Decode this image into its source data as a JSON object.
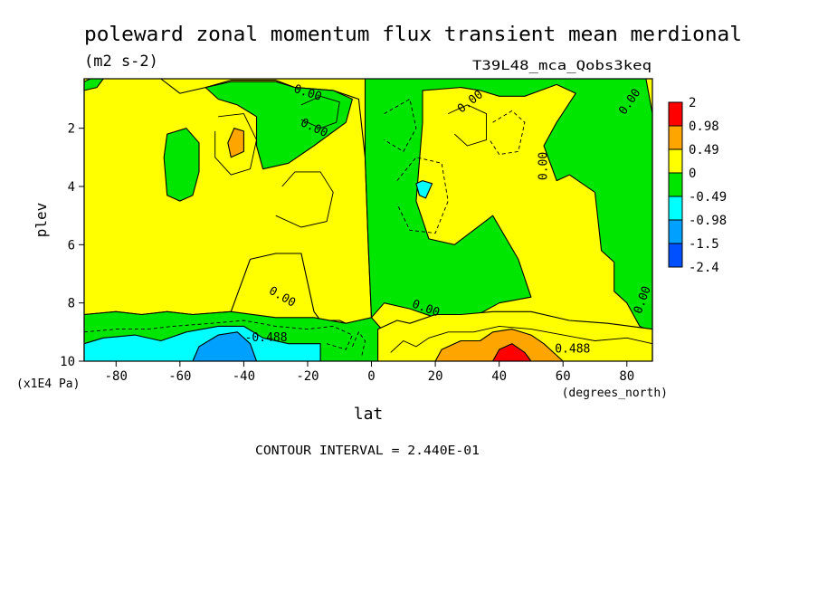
{
  "chart_data": {
    "type": "heatmap",
    "title": "poleward zonal momentum flux transient mean merdional",
    "units": "(m2 s-2)",
    "dataset": "T39L48_mca_Qobs3keq",
    "xlabel": "lat",
    "x_units": "(degrees_north)",
    "ylabel": "plev",
    "y_units": "(x1E4 Pa)",
    "xlim": [
      -90,
      88
    ],
    "ylim": [
      10,
      0.3
    ],
    "x_ticks": [
      {
        "v": -80,
        "label": "-80"
      },
      {
        "v": -60,
        "label": "-60"
      },
      {
        "v": -40,
        "label": "-40"
      },
      {
        "v": -20,
        "label": "-20"
      },
      {
        "v": 0,
        "label": "0"
      },
      {
        "v": 20,
        "label": "20"
      },
      {
        "v": 40,
        "label": "40"
      },
      {
        "v": 60,
        "label": "60"
      },
      {
        "v": 80,
        "label": "80"
      }
    ],
    "y_ticks": [
      {
        "v": 2,
        "label": "2"
      },
      {
        "v": 4,
        "label": "4"
      },
      {
        "v": 6,
        "label": "6"
      },
      {
        "v": 8,
        "label": "8"
      },
      {
        "v": 10,
        "label": "10"
      }
    ],
    "contour_interval_text": "CONTOUR INTERVAL = 2.440E-01",
    "colorbar": {
      "levels": [
        {
          "label": "2",
          "color": "#ff0000"
        },
        {
          "label": "0.98",
          "color": "#ffa500"
        },
        {
          "label": "0.49",
          "color": "#ffff00"
        },
        {
          "label": "0",
          "color": "#00e600"
        },
        {
          "label": "-0.49",
          "color": "#00ffff"
        },
        {
          "label": "-0.98",
          "color": "#00a0ff"
        },
        {
          "label": "-1.5",
          "color": "#0050ff"
        },
        {
          "label": "-2.4",
          "color": ""
        }
      ]
    },
    "contour_labels": [
      {
        "text": "0.00",
        "lat": -20,
        "p": 0.8,
        "angle": 18
      },
      {
        "text": "0.00",
        "lat": -18,
        "p": 2.0,
        "angle": 25
      },
      {
        "text": "0.00",
        "lat": 31,
        "p": 1.1,
        "angle": -38
      },
      {
        "text": "0.00",
        "lat": 81,
        "p": 1.1,
        "angle": -55
      },
      {
        "text": "0.00",
        "lat": 54,
        "p": 3.3,
        "angle": -90
      },
      {
        "text": "0.00",
        "lat": -28,
        "p": 7.8,
        "angle": 30
      },
      {
        "text": "0.00",
        "lat": 17,
        "p": 8.2,
        "angle": 20
      },
      {
        "text": "0.00",
        "lat": 85,
        "p": 7.9,
        "angle": -70
      },
      {
        "text": "-0.488",
        "lat": -33,
        "p": 9.2,
        "angle": 0
      },
      {
        "text": "0.488",
        "lat": 63,
        "p": 9.6,
        "angle": 0
      }
    ],
    "regions": [
      {
        "level": "0.49",
        "points": [
          [
            -90,
            0.3
          ],
          [
            -66,
            0.3
          ],
          [
            -60,
            0.8
          ],
          [
            -52,
            0.6
          ],
          [
            -44,
            0.35
          ],
          [
            -30,
            0.35
          ],
          [
            -24,
            0.6
          ],
          [
            -12,
            0.7
          ],
          [
            -4,
            1.0
          ],
          [
            -2,
            3.0
          ],
          [
            -1,
            6.0
          ],
          [
            0,
            8.5
          ],
          [
            -6,
            8.8
          ],
          [
            -10,
            8.6
          ],
          [
            -16,
            8.6
          ],
          [
            -18,
            8.3
          ],
          [
            -22,
            6.3
          ],
          [
            -30,
            6.3
          ],
          [
            -38,
            6.5
          ],
          [
            -44,
            8.3
          ],
          [
            -56,
            8.4
          ],
          [
            -64,
            8.3
          ],
          [
            -72,
            8.4
          ],
          [
            -80,
            8.3
          ],
          [
            -90,
            8.4
          ]
        ]
      },
      {
        "level": "0",
        "points": [
          [
            -52,
            0.6
          ],
          [
            -44,
            0.4
          ],
          [
            -30,
            0.4
          ],
          [
            -24,
            0.6
          ],
          [
            -12,
            0.7
          ],
          [
            -6,
            1.0
          ],
          [
            -8,
            1.8
          ],
          [
            -18,
            2.6
          ],
          [
            -26,
            3.2
          ],
          [
            -34,
            3.4
          ],
          [
            -36,
            2.6
          ],
          [
            -36,
            1.6
          ],
          [
            -42,
            1.2
          ],
          [
            -48,
            1.0
          ]
        ]
      },
      {
        "level": "0",
        "points": [
          [
            -90,
            0.4
          ],
          [
            -88,
            0.3
          ],
          [
            -84,
            0.3
          ],
          [
            -86,
            0.6
          ],
          [
            -90,
            0.7
          ]
        ]
      },
      {
        "level": "0",
        "points": [
          [
            -64,
            2.2
          ],
          [
            -58,
            2.0
          ],
          [
            -54,
            2.5
          ],
          [
            -54,
            3.5
          ],
          [
            -56,
            4.3
          ],
          [
            -60,
            4.5
          ],
          [
            -64,
            4.3
          ],
          [
            -65,
            3.0
          ]
        ]
      },
      {
        "level": "0",
        "points": [
          [
            -2,
            0.3
          ],
          [
            86,
            0.3
          ],
          [
            88,
            1.5
          ],
          [
            88,
            9.0
          ],
          [
            84,
            8.8
          ],
          [
            80,
            8.0
          ],
          [
            76,
            7.6
          ],
          [
            76,
            6.6
          ],
          [
            72,
            6.2
          ],
          [
            70,
            4.2
          ],
          [
            62,
            3.6
          ],
          [
            58,
            3.8
          ],
          [
            54,
            2.6
          ],
          [
            58,
            1.8
          ],
          [
            64,
            0.8
          ],
          [
            58,
            0.5
          ],
          [
            48,
            0.9
          ],
          [
            40,
            0.9
          ],
          [
            34,
            0.7
          ],
          [
            28,
            0.6
          ],
          [
            16,
            0.7
          ],
          [
            16,
            1.8
          ],
          [
            14,
            4.5
          ],
          [
            18,
            5.8
          ],
          [
            26,
            6.0
          ],
          [
            38,
            5.0
          ],
          [
            46,
            6.5
          ],
          [
            50,
            7.8
          ],
          [
            40,
            8.0
          ],
          [
            30,
            8.6
          ],
          [
            20,
            8.5
          ],
          [
            12,
            8.2
          ],
          [
            4,
            8.0
          ],
          [
            0,
            8.5
          ],
          [
            -1,
            6.0
          ],
          [
            -2,
            3.0
          ]
        ]
      },
      {
        "level": "0",
        "points": [
          [
            -90,
            8.4
          ],
          [
            -80,
            8.3
          ],
          [
            -72,
            8.4
          ],
          [
            -64,
            8.3
          ],
          [
            -56,
            8.4
          ],
          [
            -44,
            8.3
          ],
          [
            -30,
            8.5
          ],
          [
            -18,
            8.5
          ],
          [
            -8,
            8.7
          ],
          [
            0,
            8.5
          ],
          [
            4,
            9.0
          ],
          [
            6,
            9.3
          ],
          [
            12,
            9.3
          ],
          [
            16,
            9.0
          ],
          [
            22,
            8.8
          ],
          [
            28,
            9.3
          ],
          [
            40,
            8.7
          ],
          [
            52,
            8.8
          ],
          [
            58,
            9.0
          ],
          [
            66,
            9.2
          ],
          [
            72,
            9.3
          ],
          [
            80,
            9.0
          ],
          [
            88,
            9.2
          ],
          [
            88,
            10
          ],
          [
            -90,
            10
          ]
        ]
      },
      {
        "level": "0.49",
        "points": [
          [
            2,
            8.9
          ],
          [
            8,
            8.6
          ],
          [
            12,
            8.7
          ],
          [
            20,
            8.4
          ],
          [
            28,
            8.4
          ],
          [
            38,
            8.3
          ],
          [
            50,
            8.3
          ],
          [
            62,
            8.6
          ],
          [
            74,
            8.7
          ],
          [
            88,
            8.9
          ],
          [
            88,
            10
          ],
          [
            2,
            10
          ]
        ]
      },
      {
        "level": "0.98",
        "points": [
          [
            20,
            10
          ],
          [
            22,
            9.6
          ],
          [
            28,
            9.3
          ],
          [
            34,
            9.3
          ],
          [
            38,
            9.0
          ],
          [
            44,
            8.9
          ],
          [
            50,
            9.1
          ],
          [
            54,
            9.4
          ],
          [
            58,
            9.8
          ],
          [
            60,
            10
          ]
        ]
      },
      {
        "level": "2",
        "points": [
          [
            38,
            10
          ],
          [
            40,
            9.6
          ],
          [
            44,
            9.4
          ],
          [
            48,
            9.7
          ],
          [
            50,
            10
          ]
        ]
      },
      {
        "level": "0.98",
        "points": [
          [
            -43,
            2.0
          ],
          [
            -40,
            2.1
          ],
          [
            -40,
            2.8
          ],
          [
            -44,
            3.0
          ],
          [
            -45,
            2.5
          ]
        ]
      },
      {
        "level": "-0.49",
        "points": [
          [
            -90,
            9.4
          ],
          [
            -84,
            9.2
          ],
          [
            -74,
            9.1
          ],
          [
            -66,
            9.3
          ],
          [
            -58,
            9.0
          ],
          [
            -48,
            8.8
          ],
          [
            -40,
            8.8
          ],
          [
            -34,
            9.2
          ],
          [
            -26,
            9.4
          ],
          [
            -16,
            9.4
          ],
          [
            -16,
            10
          ],
          [
            -90,
            10
          ]
        ]
      },
      {
        "level": "-0.98",
        "points": [
          [
            -56,
            10
          ],
          [
            -54,
            9.5
          ],
          [
            -48,
            9.1
          ],
          [
            -42,
            9.0
          ],
          [
            -38,
            9.4
          ],
          [
            -36,
            10
          ]
        ]
      },
      {
        "level": "-0.49",
        "points": [
          [
            14,
            3.9
          ],
          [
            16,
            3.8
          ],
          [
            19,
            3.9
          ],
          [
            17,
            4.4
          ],
          [
            15,
            4.3
          ]
        ]
      }
    ],
    "lines": [
      {
        "dashed": false,
        "points": [
          [
            -48,
            1.6
          ],
          [
            -40,
            1.5
          ],
          [
            -36,
            2.4
          ],
          [
            -38,
            3.4
          ],
          [
            -44,
            3.6
          ],
          [
            -49,
            3.0
          ],
          [
            -49,
            2.1
          ]
        ]
      },
      {
        "dashed": false,
        "points": [
          [
            -28,
            4.0
          ],
          [
            -24,
            3.5
          ],
          [
            -16,
            3.5
          ],
          [
            -12,
            4.2
          ],
          [
            -14,
            5.2
          ],
          [
            -22,
            5.4
          ],
          [
            -30,
            5.0
          ]
        ]
      },
      {
        "dashed": false,
        "points": [
          [
            24,
            1.5
          ],
          [
            30,
            1.2
          ],
          [
            36,
            1.5
          ],
          [
            36,
            2.4
          ],
          [
            30,
            2.6
          ],
          [
            26,
            2.2
          ]
        ]
      },
      {
        "dashed": false,
        "points": [
          [
            -22,
            1.2
          ],
          [
            -16,
            0.9
          ],
          [
            -10,
            1.1
          ],
          [
            -11,
            1.8
          ],
          [
            -16,
            2.0
          ],
          [
            -22,
            1.7
          ]
        ]
      },
      {
        "dashed": true,
        "points": [
          [
            4,
            1.5
          ],
          [
            12,
            1.0
          ],
          [
            14,
            2.0
          ],
          [
            10,
            2.8
          ],
          [
            4,
            2.4
          ]
        ]
      },
      {
        "dashed": true,
        "points": [
          [
            8,
            3.8
          ],
          [
            14,
            3.0
          ],
          [
            22,
            3.2
          ],
          [
            24,
            4.5
          ],
          [
            20,
            5.6
          ],
          [
            12,
            5.5
          ],
          [
            8,
            4.6
          ]
        ]
      },
      {
        "dashed": true,
        "points": [
          [
            38,
            1.8
          ],
          [
            44,
            1.4
          ],
          [
            48,
            1.8
          ],
          [
            46,
            2.8
          ],
          [
            40,
            2.9
          ],
          [
            37,
            2.4
          ]
        ]
      },
      {
        "dashed": true,
        "points": [
          [
            -90,
            9.0
          ],
          [
            -80,
            8.9
          ],
          [
            -70,
            8.9
          ],
          [
            -62,
            8.8
          ],
          [
            -50,
            8.7
          ],
          [
            -40,
            8.6
          ],
          [
            -30,
            8.8
          ],
          [
            -20,
            8.9
          ],
          [
            -12,
            8.8
          ],
          [
            -6,
            9.1
          ],
          [
            -8,
            9.6
          ],
          [
            -14,
            9.4
          ]
        ]
      },
      {
        "dashed": false,
        "points": [
          [
            6,
            9.7
          ],
          [
            10,
            9.3
          ],
          [
            14,
            9.5
          ],
          [
            18,
            9.2
          ],
          [
            24,
            9.0
          ],
          [
            32,
            9.0
          ],
          [
            40,
            8.8
          ],
          [
            50,
            8.9
          ],
          [
            60,
            9.1
          ],
          [
            70,
            9.3
          ],
          [
            80,
            9.2
          ],
          [
            88,
            9.4
          ]
        ]
      },
      {
        "dashed": true,
        "points": [
          [
            -6,
            9.5
          ],
          [
            -4,
            9.0
          ],
          [
            -2,
            9.3
          ],
          [
            -3,
            9.8
          ]
        ]
      }
    ]
  }
}
